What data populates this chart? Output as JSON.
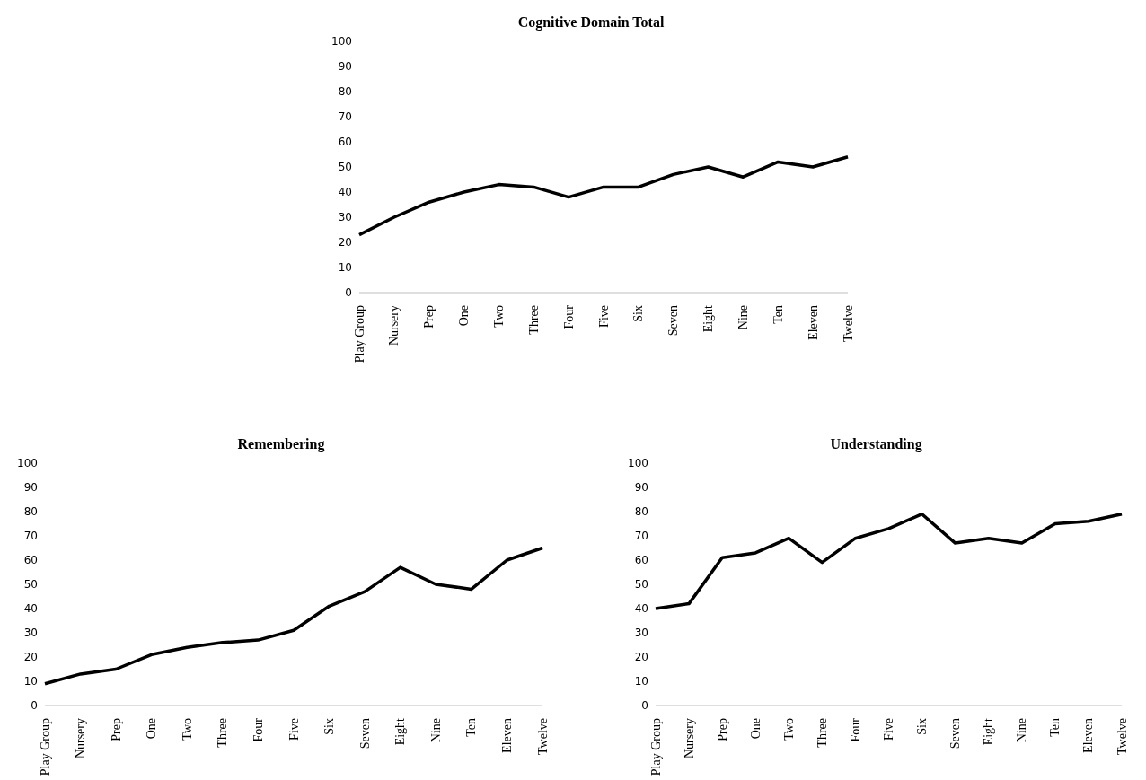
{
  "chart_data": [
    {
      "type": "line",
      "title": "Cognitive Domain Total",
      "categories": [
        "Play Group",
        "Nursery",
        "Prep",
        "One",
        "Two",
        "Three",
        "Four",
        "Five",
        "Six",
        "Seven",
        "Eight",
        "Nine",
        "Ten",
        "Eleven",
        "Twelve"
      ],
      "series": [
        {
          "color": "#000000",
          "values": [
            23,
            30,
            36,
            40,
            43,
            42,
            38,
            42,
            42,
            47,
            50,
            46,
            52,
            50,
            54
          ]
        }
      ],
      "ylim": [
        0,
        100
      ],
      "yticks": [
        0,
        10,
        20,
        30,
        40,
        50,
        60,
        70,
        80,
        90,
        100
      ],
      "grid": false,
      "legend": false,
      "marker": "none",
      "line_style": "solid"
    },
    {
      "type": "line",
      "title": "Remembering",
      "categories": [
        "Play Group",
        "Nursery",
        "Prep",
        "One",
        "Two",
        "Three",
        "Four",
        "Five",
        "Six",
        "Seven",
        "Eight",
        "Nine",
        "Ten",
        "Eleven",
        "Twelve"
      ],
      "series": [
        {
          "color": "#000000",
          "values": [
            9,
            13,
            15,
            21,
            24,
            26,
            27,
            31,
            41,
            47,
            57,
            50,
            48,
            60,
            65
          ]
        }
      ],
      "ylim": [
        0,
        100
      ],
      "yticks": [
        0,
        10,
        20,
        30,
        40,
        50,
        60,
        70,
        80,
        90,
        100
      ],
      "grid": false,
      "legend": false,
      "marker": "none",
      "line_style": "solid"
    },
    {
      "type": "line",
      "title": "Understanding",
      "categories": [
        "Play Group",
        "Nursery",
        "Prep",
        "One",
        "Two",
        "Three",
        "Four",
        "Five",
        "Six",
        "Seven",
        "Eight",
        "Nine",
        "Ten",
        "Eleven",
        "Twelve"
      ],
      "series": [
        {
          "color": "#000000",
          "values": [
            40,
            42,
            61,
            63,
            69,
            59,
            69,
            73,
            79,
            67,
            69,
            67,
            75,
            76,
            79
          ]
        }
      ],
      "ylim": [
        0,
        100
      ],
      "yticks": [
        0,
        10,
        20,
        30,
        40,
        50,
        60,
        70,
        80,
        90,
        100
      ],
      "grid": false,
      "legend": false,
      "marker": "none",
      "line_style": "solid"
    }
  ]
}
